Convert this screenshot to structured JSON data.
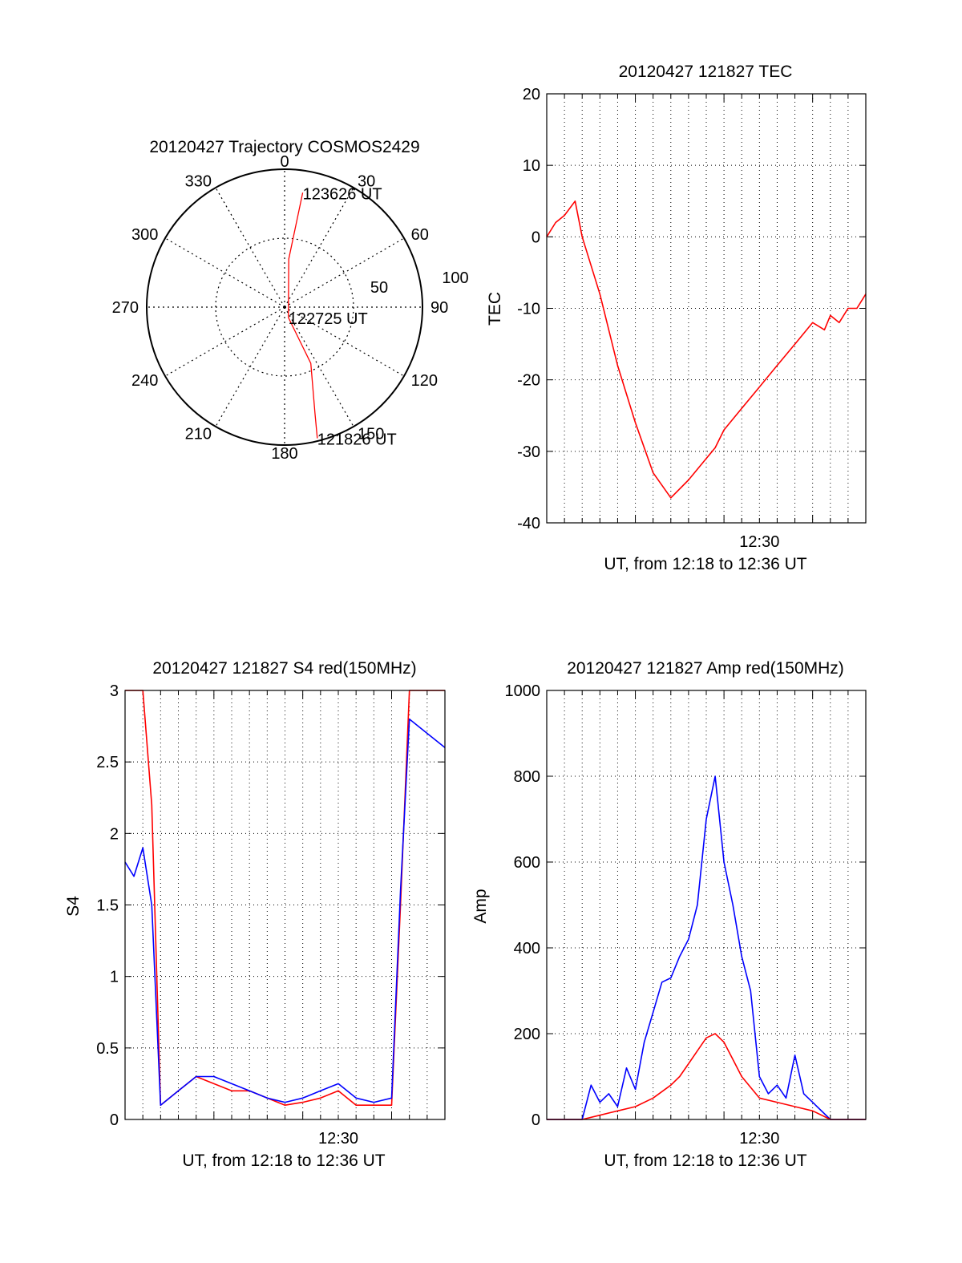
{
  "colors": {
    "red": "#ff0000",
    "blue": "#0000ff",
    "axis": "#000000",
    "grid": "#000000"
  },
  "chart_data": [
    {
      "id": "trajectory",
      "type": "polar",
      "title": "20120427 Trajectory COSMOS2429",
      "azimuth_labels": [
        "0",
        "30",
        "60",
        "90",
        "120",
        "150",
        "180",
        "210",
        "240",
        "270",
        "300",
        "330"
      ],
      "radius_labels": [
        "50",
        "100"
      ],
      "rlim": [
        0,
        100
      ],
      "grid": true,
      "path_units": "[azimuth_deg, radius]",
      "path": [
        [
          166,
          98
        ],
        [
          164,
          80
        ],
        [
          155,
          45
        ],
        [
          160,
          8
        ],
        [
          5,
          35
        ],
        [
          9,
          84
        ]
      ],
      "annotations": [
        {
          "text": "123626 UT",
          "azimuth": 9,
          "radius": 84
        },
        {
          "text": "122725 UT",
          "azimuth": 160,
          "radius": 8
        },
        {
          "text": "121826 UT",
          "azimuth": 166,
          "radius": 98
        }
      ]
    },
    {
      "id": "tec",
      "type": "line",
      "title": "20120427 121827 TEC",
      "xlabel": "UT, from 12:18 to 12:36 UT",
      "ylabel": "TEC",
      "xlim": [
        "12:18",
        "12:36"
      ],
      "xtick_labels": [
        "12:30"
      ],
      "ylim": [
        -40,
        20
      ],
      "yticks": [
        -40,
        -30,
        -20,
        -10,
        0,
        10,
        20
      ],
      "grid": true,
      "series": [
        {
          "color": "red",
          "x": [
            "12:18:00",
            "12:18:30",
            "12:19:00",
            "12:19:36",
            "12:20:00",
            "12:21:00",
            "12:22:00",
            "12:23:00",
            "12:24:00",
            "12:25:00",
            "12:26:00",
            "12:27:00",
            "12:27:30",
            "12:28:00",
            "12:29:00",
            "12:30:00",
            "12:31:00",
            "12:32:00",
            "12:33:00",
            "12:33:40",
            "12:34:00",
            "12:34:30",
            "12:35:00",
            "12:35:30",
            "12:36:00"
          ],
          "y": [
            0,
            2,
            3,
            5,
            0,
            -8,
            -18,
            -26,
            -33,
            -36.5,
            -34,
            -31,
            -29.5,
            -27,
            -24,
            -21,
            -18,
            -15,
            -12,
            -13,
            -11,
            -12,
            -10,
            -10,
            -8
          ]
        }
      ]
    },
    {
      "id": "s4",
      "type": "line",
      "title": "20120427 121827 S4 red(150MHz)",
      "xlabel": "UT, from 12:18 to 12:36 UT",
      "ylabel": "S4",
      "xlim": [
        "12:18",
        "12:36"
      ],
      "xtick_labels": [
        "12:30"
      ],
      "ylim": [
        0,
        3
      ],
      "yticks": [
        "0",
        "0.5",
        "1",
        "1.5",
        "2",
        "2.5",
        "3"
      ],
      "grid": true,
      "series": [
        {
          "color": "red",
          "x": [
            "12:18:00",
            "12:18:30",
            "12:19:00",
            "12:19:30",
            "12:20:00",
            "12:21:00",
            "12:22:00",
            "12:23:00",
            "12:24:00",
            "12:25:00",
            "12:26:00",
            "12:27:00",
            "12:28:00",
            "12:29:00",
            "12:30:00",
            "12:31:00",
            "12:32:00",
            "12:33:00",
            "12:33:30",
            "12:34:00",
            "12:35:00",
            "12:36:00"
          ],
          "y": [
            3,
            3,
            3,
            2.2,
            0.1,
            0.2,
            0.3,
            0.25,
            0.2,
            0.2,
            0.15,
            0.1,
            0.12,
            0.15,
            0.2,
            0.1,
            0.1,
            0.1,
            1.5,
            3,
            3,
            3
          ]
        },
        {
          "color": "blue",
          "x": [
            "12:18:00",
            "12:18:30",
            "12:19:00",
            "12:19:30",
            "12:20:00",
            "12:21:00",
            "12:22:00",
            "12:23:00",
            "12:24:00",
            "12:25:00",
            "12:26:00",
            "12:27:00",
            "12:28:00",
            "12:29:00",
            "12:30:00",
            "12:31:00",
            "12:32:00",
            "12:33:00",
            "12:33:30",
            "12:34:00",
            "12:35:00",
            "12:36:00"
          ],
          "y": [
            1.8,
            1.7,
            1.9,
            1.5,
            0.1,
            0.2,
            0.3,
            0.3,
            0.25,
            0.2,
            0.15,
            0.12,
            0.15,
            0.2,
            0.25,
            0.15,
            0.12,
            0.15,
            1.6,
            2.8,
            2.7,
            2.6
          ]
        }
      ]
    },
    {
      "id": "amp",
      "type": "line",
      "title": "20120427 121827 Amp red(150MHz)",
      "xlabel": "UT, from 12:18 to 12:36 UT",
      "ylabel": "Amp",
      "xlim": [
        "12:18",
        "12:36"
      ],
      "xtick_labels": [
        "12:30"
      ],
      "ylim": [
        0,
        1000
      ],
      "yticks": [
        0,
        200,
        400,
        600,
        800,
        1000
      ],
      "grid": true,
      "series": [
        {
          "color": "blue",
          "x": [
            "12:18:00",
            "12:20:00",
            "12:20:30",
            "12:21:00",
            "12:21:30",
            "12:22:00",
            "12:22:30",
            "12:23:00",
            "12:23:30",
            "12:24:00",
            "12:24:30",
            "12:25:00",
            "12:25:30",
            "12:26:00",
            "12:26:30",
            "12:27:00",
            "12:27:30",
            "12:28:00",
            "12:28:30",
            "12:29:00",
            "12:29:30",
            "12:30:00",
            "12:30:30",
            "12:31:00",
            "12:31:30",
            "12:32:00",
            "12:32:30",
            "12:33:00",
            "12:34:00",
            "12:36:00"
          ],
          "y": [
            0,
            0,
            80,
            40,
            60,
            30,
            120,
            70,
            180,
            250,
            320,
            330,
            380,
            420,
            500,
            700,
            800,
            600,
            500,
            380,
            300,
            100,
            60,
            80,
            50,
            150,
            60,
            40,
            0,
            0
          ]
        },
        {
          "color": "red",
          "x": [
            "12:18:00",
            "12:20:00",
            "12:21:00",
            "12:22:00",
            "12:23:00",
            "12:24:00",
            "12:25:00",
            "12:25:30",
            "12:26:00",
            "12:26:30",
            "12:27:00",
            "12:27:30",
            "12:28:00",
            "12:28:30",
            "12:29:00",
            "12:30:00",
            "12:31:00",
            "12:32:00",
            "12:33:00",
            "12:34:00",
            "12:36:00"
          ],
          "y": [
            0,
            0,
            10,
            20,
            30,
            50,
            80,
            100,
            130,
            160,
            190,
            200,
            180,
            140,
            100,
            50,
            40,
            30,
            20,
            0,
            0
          ]
        }
      ]
    }
  ]
}
